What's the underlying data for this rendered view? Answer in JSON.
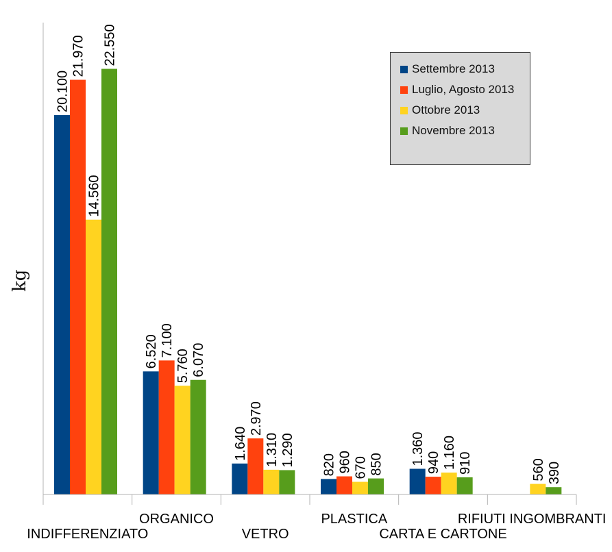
{
  "chart_data": {
    "type": "bar",
    "ylabel": "kg",
    "ylim": [
      0,
      25000
    ],
    "grid": false,
    "legend_position": "top-right",
    "categories": [
      "INDIFFERENZIATO",
      "ORGANICO",
      "VETRO",
      "PLASTICA",
      "CARTA E CARTONE",
      "RIFIUTI INGOMBRANTI"
    ],
    "series": [
      {
        "name": "Settembre 2013",
        "color": "#004586",
        "values": [
          20100,
          6520,
          1640,
          820,
          1360,
          null
        ],
        "labels": [
          "20.100",
          "6.520",
          "1.640",
          "820",
          "1.360",
          ""
        ]
      },
      {
        "name": "Luglio, Agosto 2013",
        "color": "#ff420e",
        "values": [
          21970,
          7100,
          2970,
          960,
          940,
          null
        ],
        "labels": [
          "21.970",
          "7.100",
          "2.970",
          "960",
          "940",
          ""
        ]
      },
      {
        "name": "Ottobre 2013",
        "color": "#ffd320",
        "values": [
          14560,
          5760,
          1310,
          670,
          1160,
          560
        ],
        "labels": [
          "14.560",
          "5.760",
          "1.310",
          "670",
          "1.160",
          "560"
        ]
      },
      {
        "name": "Novembre 2013",
        "color": "#579d1c",
        "values": [
          22550,
          6070,
          1290,
          850,
          910,
          390
        ],
        "labels": [
          "22.550",
          "6.070",
          "1.290",
          "850",
          "910",
          "390"
        ]
      }
    ]
  }
}
